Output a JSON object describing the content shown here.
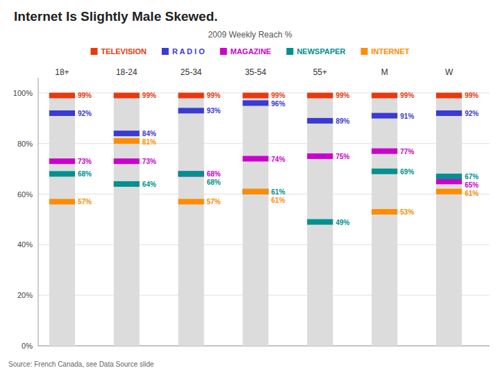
{
  "chart_data": {
    "type": "dot",
    "title": "Internet Is Slightly Male Skewed.",
    "subtitle": "2009 Weekly Reach %",
    "source": "Source: French Canada, see Data Source slide",
    "categories": [
      "18+",
      "18-24",
      "25-34",
      "35-54",
      "55+",
      "M",
      "W"
    ],
    "series": [
      {
        "name": "TELEVISION",
        "color": "#E8380D",
        "values": [
          99,
          99,
          99,
          99,
          99,
          99,
          99
        ],
        "value_labels": [
          "99%",
          "99%",
          "99%",
          "99%",
          "99%",
          "99%",
          "99%"
        ]
      },
      {
        "name": "R A D I O",
        "color": "#3A3AD4",
        "values": [
          92,
          84,
          93,
          96,
          89,
          91,
          92
        ],
        "value_labels": [
          "92%",
          "84%",
          "93%",
          "96%",
          "89%",
          "91%",
          "92%"
        ]
      },
      {
        "name": "MAGAZINE",
        "color": "#CC00CC",
        "values": [
          73,
          73,
          68,
          74,
          75,
          77,
          65
        ],
        "value_labels": [
          "73%",
          "73%",
          "68%",
          "74%",
          "75%",
          "77%",
          "65%"
        ]
      },
      {
        "name": "NEWSPAPER",
        "color": "#009090",
        "values": [
          68,
          64,
          68,
          61,
          49,
          69,
          67
        ],
        "value_labels": [
          "68%",
          "64%",
          "68%",
          "61%",
          "49%",
          "69%",
          "67%"
        ]
      },
      {
        "name": "INTERNET",
        "color": "#FF8C00",
        "values": [
          57,
          81,
          57,
          61,
          null,
          53,
          61
        ],
        "value_labels": [
          "57%",
          "81%",
          "57%",
          "61%",
          null,
          "53%",
          "61%"
        ]
      }
    ],
    "ylim": [
      0,
      106
    ],
    "yticks": [
      {
        "value": 0,
        "label": "0%"
      },
      {
        "value": 20,
        "label": "20%"
      },
      {
        "value": 40,
        "label": "40%"
      },
      {
        "value": 60,
        "label": "60%"
      },
      {
        "value": 80,
        "label": "80%"
      },
      {
        "value": 100,
        "label": "100%"
      }
    ],
    "grid": true,
    "legend": "top",
    "data_labels": true
  }
}
